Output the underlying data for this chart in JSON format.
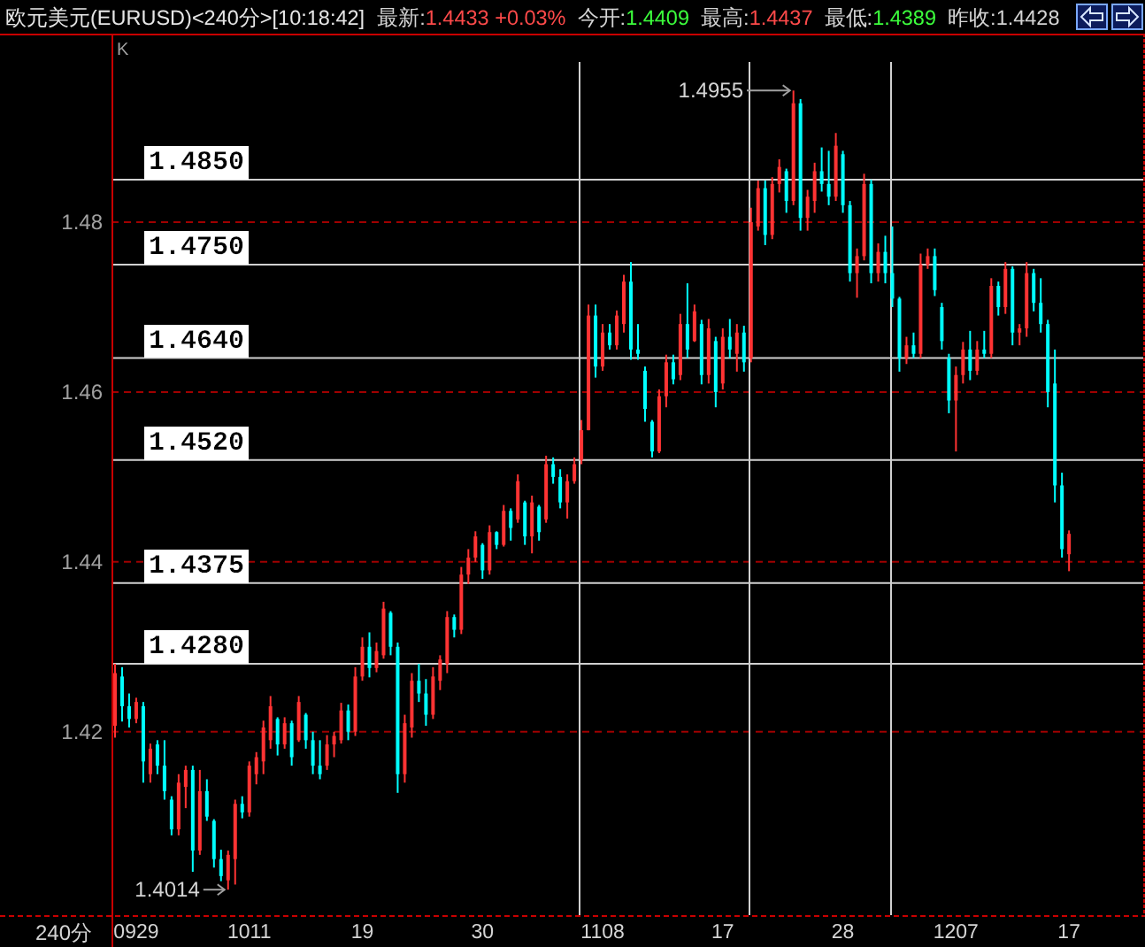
{
  "chart_data": {
    "type": "candlestick",
    "title": "欧元美元(EURUSD)<240分>[10:18:42]",
    "subtitle": "最新:1.4433 +0.03%  今开:1.4409  最高:1.4437  最低:1.4389  昨收:1.4428",
    "xlabel": "240分",
    "categories": [
      null,
      null,
      null,
      "0929",
      null,
      null,
      null,
      null,
      null,
      null,
      null,
      null,
      null,
      null,
      null,
      null,
      null,
      null,
      null,
      "1011",
      null,
      null,
      null,
      null,
      null,
      null,
      null,
      null,
      null,
      null,
      null,
      null,
      null,
      null,
      null,
      "19",
      null,
      null,
      null,
      null,
      null,
      null,
      null,
      null,
      null,
      null,
      null,
      null,
      null,
      null,
      null,
      null,
      "30",
      null,
      null,
      null,
      null,
      null,
      null,
      null,
      null,
      null,
      null,
      null,
      null,
      null,
      null,
      null,
      null,
      "1108",
      null,
      null,
      null,
      null,
      null,
      null,
      null,
      null,
      null,
      null,
      null,
      null,
      null,
      null,
      null,
      null,
      "17",
      null,
      null,
      null,
      null,
      null,
      null,
      null,
      null,
      null,
      null,
      null,
      null,
      null,
      null,
      null,
      null,
      "28",
      null,
      null,
      null,
      null,
      null,
      null,
      null,
      null,
      null,
      null,
      null,
      null,
      null,
      null,
      null,
      "1207",
      null,
      null,
      null,
      null,
      null,
      null,
      null,
      null,
      null,
      null,
      null,
      null,
      null,
      null,
      null,
      "17",
      null,
      null,
      null,
      null,
      null,
      null,
      null,
      null,
      null,
      null
    ],
    "ohlc": [
      [
        1.4207,
        1.428,
        1.4193,
        1.4269
      ],
      [
        1.4265,
        1.4276,
        1.4212,
        1.423
      ],
      [
        1.423,
        1.4245,
        1.4205,
        1.4215
      ],
      [
        1.4215,
        1.424,
        1.421,
        1.4235
      ],
      [
        1.423,
        1.4235,
        1.414,
        1.4165
      ],
      [
        1.415,
        1.4186,
        1.414,
        1.418
      ],
      [
        1.4185,
        1.419,
        1.415,
        1.416
      ],
      [
        1.416,
        1.419,
        1.412,
        1.413
      ],
      [
        1.412,
        1.4124,
        1.4078,
        1.4085
      ],
      [
        1.4085,
        1.415,
        1.4078,
        1.414
      ],
      [
        1.4135,
        1.416,
        1.411,
        1.4155
      ],
      [
        1.4155,
        1.416,
        1.4035,
        1.406
      ],
      [
        1.406,
        1.4155,
        1.4055,
        1.413
      ],
      [
        1.413,
        1.4144,
        1.4095,
        1.41
      ],
      [
        1.4095,
        1.4097,
        1.404,
        1.405
      ],
      [
        1.405,
        1.4061,
        1.4024,
        1.403
      ],
      [
        1.4025,
        1.406,
        1.4014,
        1.4055
      ],
      [
        1.405,
        1.412,
        1.402,
        1.4115
      ],
      [
        1.4115,
        1.4124,
        1.4098,
        1.4105
      ],
      [
        1.4105,
        1.4165,
        1.41,
        1.416
      ],
      [
        1.415,
        1.4176,
        1.4138,
        1.417
      ],
      [
        1.4165,
        1.4213,
        1.415,
        1.4205
      ],
      [
        1.419,
        1.4242,
        1.418,
        1.423
      ],
      [
        1.4215,
        1.4217,
        1.4172,
        1.4185
      ],
      [
        1.4185,
        1.4217,
        1.418,
        1.421
      ],
      [
        1.421,
        1.4213,
        1.416,
        1.417
      ],
      [
        1.419,
        1.4242,
        1.4188,
        1.4235
      ],
      [
        1.422,
        1.4222,
        1.418,
        1.419
      ],
      [
        1.419,
        1.42,
        1.415,
        1.416
      ],
      [
        1.416,
        1.419,
        1.4144,
        1.415
      ],
      [
        1.416,
        1.4196,
        1.4155,
        1.4185
      ],
      [
        1.4185,
        1.42,
        1.417,
        1.4195
      ],
      [
        1.419,
        1.4234,
        1.4186,
        1.4225
      ],
      [
        1.4225,
        1.4232,
        1.419,
        1.42
      ],
      [
        1.42,
        1.4276,
        1.4195,
        1.4265
      ],
      [
        1.4265,
        1.4311,
        1.426,
        1.43
      ],
      [
        1.43,
        1.4317,
        1.4264,
        1.4275
      ],
      [
        1.4275,
        1.4305,
        1.427,
        1.4295
      ],
      [
        1.429,
        1.4353,
        1.4286,
        1.4345
      ],
      [
        1.434,
        1.4342,
        1.429,
        1.43
      ],
      [
        1.43,
        1.4305,
        1.4128,
        1.415
      ],
      [
        1.415,
        1.422,
        1.414,
        1.421
      ],
      [
        1.4205,
        1.4269,
        1.4193,
        1.426
      ],
      [
        1.426,
        1.428,
        1.4235,
        1.4245
      ],
      [
        1.4245,
        1.4262,
        1.4207,
        1.422
      ],
      [
        1.422,
        1.4276,
        1.4215,
        1.4265
      ],
      [
        1.426,
        1.429,
        1.4249,
        1.4285
      ],
      [
        1.428,
        1.4342,
        1.4269,
        1.4335
      ],
      [
        1.4335,
        1.4338,
        1.4311,
        1.432
      ],
      [
        1.432,
        1.4394,
        1.4315,
        1.4385
      ],
      [
        1.4385,
        1.4415,
        1.4374,
        1.4405
      ],
      [
        1.4405,
        1.4436,
        1.44,
        1.443
      ],
      [
        1.442,
        1.4422,
        1.438,
        1.439
      ],
      [
        1.439,
        1.4443,
        1.4385,
        1.4435
      ],
      [
        1.4435,
        1.4436,
        1.4415,
        1.442
      ],
      [
        1.442,
        1.4467,
        1.4418,
        1.446
      ],
      [
        1.446,
        1.4463,
        1.4425,
        1.444
      ],
      [
        1.445,
        1.4503,
        1.4446,
        1.4495
      ],
      [
        1.447,
        1.4472,
        1.442,
        1.443
      ],
      [
        1.443,
        1.4478,
        1.441,
        1.447
      ],
      [
        1.4465,
        1.4467,
        1.4425,
        1.4435
      ],
      [
        1.445,
        1.4525,
        1.4446,
        1.4515
      ],
      [
        1.4515,
        1.4523,
        1.4492,
        1.45
      ],
      [
        1.45,
        1.4509,
        1.4463,
        1.447
      ],
      [
        1.447,
        1.4503,
        1.4451,
        1.4495
      ],
      [
        1.4495,
        1.4523,
        1.4492,
        1.4515
      ],
      [
        1.452,
        1.4567,
        1.4515,
        1.4555
      ],
      [
        1.4555,
        1.4703,
        1.4555,
        1.469
      ],
      [
        1.469,
        1.4703,
        1.4617,
        1.463
      ],
      [
        1.463,
        1.468,
        1.4625,
        1.467
      ],
      [
        1.467,
        1.468,
        1.465,
        1.4655
      ],
      [
        1.4655,
        1.4696,
        1.465,
        1.469
      ],
      [
        1.468,
        1.4738,
        1.467,
        1.473
      ],
      [
        1.473,
        1.4753,
        1.4638,
        1.465
      ],
      [
        1.465,
        1.468,
        1.4638,
        1.4645
      ],
      [
        1.4625,
        1.463,
        1.4565,
        1.458
      ],
      [
        1.4565,
        1.4567,
        1.4523,
        1.453
      ],
      [
        1.453,
        1.4603,
        1.4528,
        1.4595
      ],
      [
        1.4595,
        1.4644,
        1.4582,
        1.4635
      ],
      [
        1.4635,
        1.4644,
        1.4609,
        1.4615
      ],
      [
        1.462,
        1.4692,
        1.4614,
        1.468
      ],
      [
        1.468,
        1.4728,
        1.464,
        1.465
      ],
      [
        1.466,
        1.4703,
        1.4659,
        1.4695
      ],
      [
        1.468,
        1.4685,
        1.4609,
        1.462
      ],
      [
        1.462,
        1.4686,
        1.461,
        1.4675
      ],
      [
        1.466,
        1.4665,
        1.4582,
        1.46
      ],
      [
        1.461,
        1.4675,
        1.4603,
        1.4665
      ],
      [
        1.4665,
        1.4686,
        1.464,
        1.465
      ],
      [
        1.4645,
        1.468,
        1.4624,
        1.467
      ],
      [
        1.467,
        1.4678,
        1.4624,
        1.4635
      ],
      [
        1.464,
        1.4817,
        1.4635,
        1.48
      ],
      [
        1.4795,
        1.4849,
        1.479,
        1.484
      ],
      [
        1.484,
        1.4849,
        1.4773,
        1.4785
      ],
      [
        1.4785,
        1.4853,
        1.478,
        1.4845
      ],
      [
        1.4845,
        1.4874,
        1.4835,
        1.4865
      ],
      [
        1.486,
        1.4863,
        1.4811,
        1.4825
      ],
      [
        1.4825,
        1.4955,
        1.482,
        1.494
      ],
      [
        1.494,
        1.4945,
        1.479,
        1.4805
      ],
      [
        1.4805,
        1.4838,
        1.479,
        1.483
      ],
      [
        1.4825,
        1.487,
        1.4811,
        1.486
      ],
      [
        1.486,
        1.4888,
        1.4836,
        1.4845
      ],
      [
        1.4845,
        1.4884,
        1.482,
        1.483
      ],
      [
        1.483,
        1.4905,
        1.4825,
        1.489
      ],
      [
        1.488,
        1.4884,
        1.4811,
        1.482
      ],
      [
        1.482,
        1.4825,
        1.473,
        1.474
      ],
      [
        1.474,
        1.4769,
        1.4711,
        1.476
      ],
      [
        1.476,
        1.4857,
        1.4755,
        1.4845
      ],
      [
        1.4845,
        1.485,
        1.4728,
        1.474
      ],
      [
        1.474,
        1.4775,
        1.473,
        1.4765
      ],
      [
        1.4765,
        1.4784,
        1.4728,
        1.474
      ],
      [
        1.474,
        1.4795,
        1.47,
        1.471
      ],
      [
        1.471,
        1.4712,
        1.4624,
        1.464
      ],
      [
        1.464,
        1.4665,
        1.4633,
        1.4655
      ],
      [
        1.4655,
        1.467,
        1.464,
        1.4645
      ],
      [
        1.4645,
        1.4763,
        1.464,
        1.475
      ],
      [
        1.475,
        1.4769,
        1.4745,
        1.476
      ],
      [
        1.476,
        1.4769,
        1.4713,
        1.472
      ],
      [
        1.47,
        1.4705,
        1.465,
        1.466
      ],
      [
        1.464,
        1.4645,
        1.4575,
        1.459
      ],
      [
        1.459,
        1.463,
        1.453,
        1.462
      ],
      [
        1.462,
        1.4659,
        1.461,
        1.465
      ],
      [
        1.465,
        1.4672,
        1.4614,
        1.4625
      ],
      [
        1.4625,
        1.466,
        1.462,
        1.465
      ],
      [
        1.465,
        1.4672,
        1.464,
        1.4645
      ],
      [
        1.4645,
        1.4734,
        1.464,
        1.4725
      ],
      [
        1.4725,
        1.473,
        1.469,
        1.47
      ],
      [
        1.47,
        1.4753,
        1.4692,
        1.4745
      ],
      [
        1.4745,
        1.4748,
        1.4655,
        1.467
      ],
      [
        1.467,
        1.468,
        1.4655,
        1.4675
      ],
      [
        1.4675,
        1.4753,
        1.4665,
        1.474
      ],
      [
        1.474,
        1.4745,
        1.4695,
        1.4705
      ],
      [
        1.4705,
        1.4734,
        1.467,
        1.468
      ],
      [
        1.468,
        1.4685,
        1.4582,
        1.46
      ],
      [
        1.461,
        1.465,
        1.447,
        1.449
      ],
      [
        1.449,
        1.4505,
        1.4405,
        1.4415
      ],
      [
        1.4409,
        1.4437,
        1.4389,
        1.4433
      ],
      null,
      null,
      null,
      null,
      null,
      null,
      null,
      null,
      null,
      null
    ],
    "colors": [
      "#ff3333",
      "#00ffff",
      "#00ffff",
      "#ff3333",
      "#00ffff",
      "#ff3333",
      "#00ffff",
      "#00ffff",
      "#00ffff",
      "#ff3333",
      "#ff3333",
      "#00ffff",
      "#ff3333",
      "#00ffff",
      "#00ffff",
      "#00ffff",
      "#ff3333",
      "#ff3333",
      "#00ffff",
      "#ff3333",
      "#ff3333",
      "#ff3333",
      "#ff3333",
      "#00ffff",
      "#ff3333",
      "#00ffff",
      "#ff3333",
      "#00ffff",
      "#00ffff",
      "#00ffff",
      "#ff3333",
      "#ff3333",
      "#ff3333",
      "#00ffff",
      "#ff3333",
      "#ff3333",
      "#00ffff",
      "#ff3333",
      "#ff3333",
      "#00ffff",
      "#00ffff",
      "#ff3333",
      "#ff3333",
      "#00ffff",
      "#00ffff",
      "#ff3333",
      "#ff3333",
      "#ff3333",
      "#00ffff",
      "#ff3333",
      "#ff3333",
      "#ff3333",
      "#00ffff",
      "#ff3333",
      "#00ffff",
      "#ff3333",
      "#00ffff",
      "#ff3333",
      "#00ffff",
      "#ff3333",
      "#00ffff",
      "#ff3333",
      "#00ffff",
      "#00ffff",
      "#ff3333",
      "#ff3333",
      "#ff3333",
      "#ff3333",
      "#00ffff",
      "#ff3333",
      "#00ffff",
      "#ff3333",
      "#ff3333",
      "#00ffff",
      "#00ffff",
      "#00ffff",
      "#00ffff",
      "#ff3333",
      "#ff3333",
      "#00ffff",
      "#ff3333",
      "#00ffff",
      "#ff3333",
      "#00ffff",
      "#ff3333",
      "#00ffff",
      "#ff3333",
      "#00ffff",
      "#ff3333",
      "#00ffff",
      "#ff3333",
      "#ff3333",
      "#00ffff",
      "#ff3333",
      "#ff3333",
      "#00ffff",
      "#ff3333",
      "#00ffff",
      "#ff3333",
      "#ff3333",
      "#00ffff",
      "#00ffff",
      "#ff3333",
      "#00ffff",
      "#00ffff",
      "#ff3333",
      "#ff3333",
      "#00ffff",
      "#ff3333",
      "#00ffff",
      "#00ffff",
      "#00ffff",
      "#ff3333",
      "#00ffff",
      "#ff3333",
      "#ff3333",
      "#00ffff",
      "#00ffff",
      "#00ffff",
      "#ff3333",
      "#ff3333",
      "#00ffff",
      "#ff3333",
      "#00ffff",
      "#ff3333",
      "#00ffff",
      "#ff3333",
      "#00ffff",
      "#ff3333",
      "#ff3333",
      "#00ffff",
      "#00ffff",
      "#00ffff",
      "#00ffff",
      "#00ffff",
      "#ff3333",
      null,
      null,
      null,
      null,
      null,
      null,
      null,
      null,
      null,
      null
    ],
    "ylim": [
      1.3984,
      1.5022
    ],
    "yticks": [
      1.42,
      1.44,
      1.46,
      1.48
    ],
    "grid": "y",
    "ref_lines": [
      {
        "axis": "y",
        "value": 1.485,
        "label": "1.4850",
        "color": "#d0d0d0"
      },
      {
        "axis": "y",
        "value": 1.475,
        "label": "1.4750",
        "color": "#d0d0d0"
      },
      {
        "axis": "y",
        "value": 1.464,
        "label": "1.4640",
        "color": "#d0d0d0"
      },
      {
        "axis": "y",
        "value": 1.452,
        "label": "1.4520",
        "color": "#d0d0d0"
      },
      {
        "axis": "y",
        "value": 1.4375,
        "label": "1.4375",
        "color": "#d0d0d0"
      },
      {
        "axis": "y",
        "value": 1.428,
        "label": "1.4280",
        "color": "#d0d0d0"
      }
    ],
    "annotations": [
      "1.4955",
      "1.4014",
      "K"
    ]
  }
}
